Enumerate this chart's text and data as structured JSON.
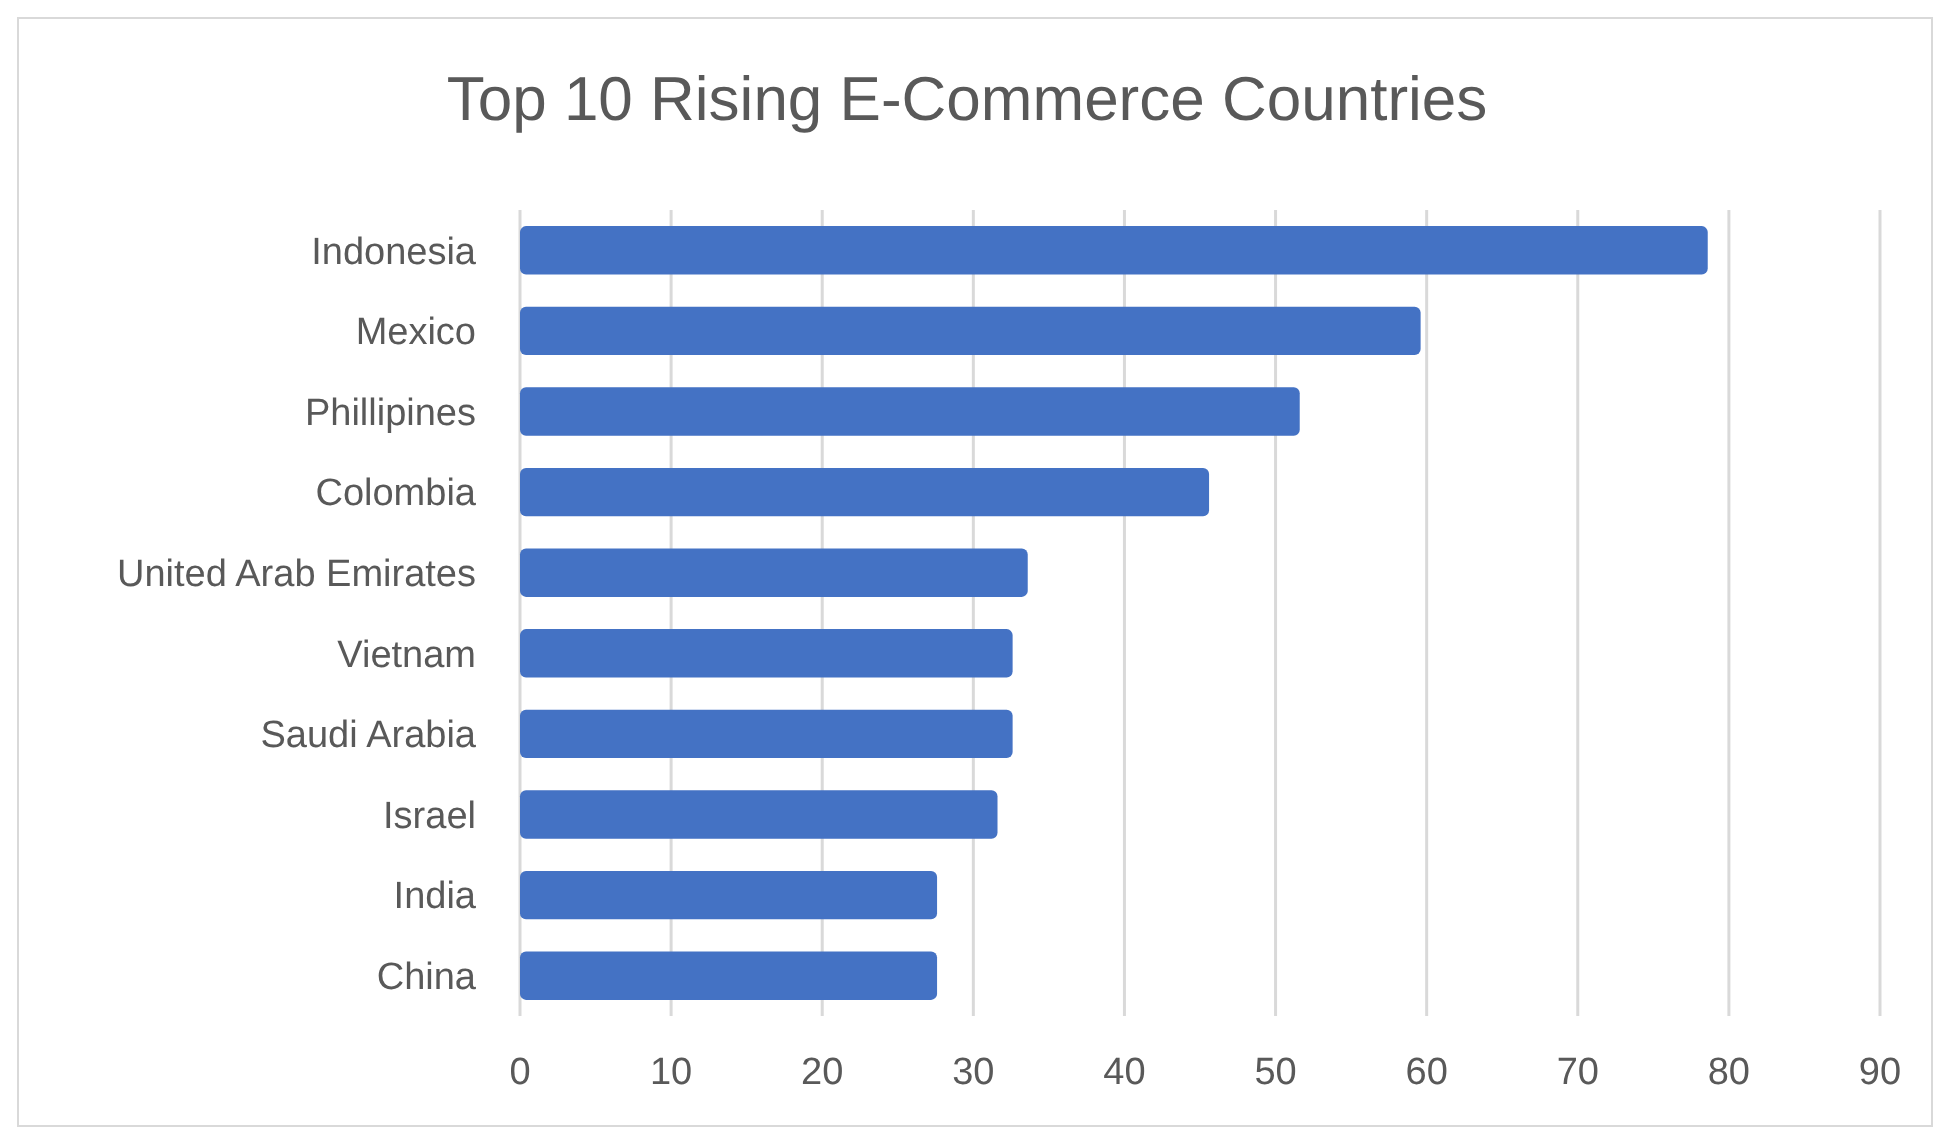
{
  "chart_data": {
    "type": "bar",
    "orientation": "horizontal",
    "title": "Top 10 Rising E-Commerce Countries",
    "categories": [
      "Indonesia",
      "Mexico",
      "Phillipines ",
      "Colombia",
      "United Arab Emirates",
      "Vietnam",
      "Saudi Arabia",
      "Israel",
      "India",
      "China"
    ],
    "values": [
      78.6,
      59.6,
      51.6,
      45.6,
      33.6,
      32.6,
      32.6,
      31.6,
      27.6,
      27.6
    ],
    "color": "#4472c4",
    "xlim": [
      0,
      90
    ],
    "xticks": [
      0,
      10,
      20,
      30,
      40,
      50,
      60,
      70,
      80,
      90
    ],
    "grid": "x"
  }
}
